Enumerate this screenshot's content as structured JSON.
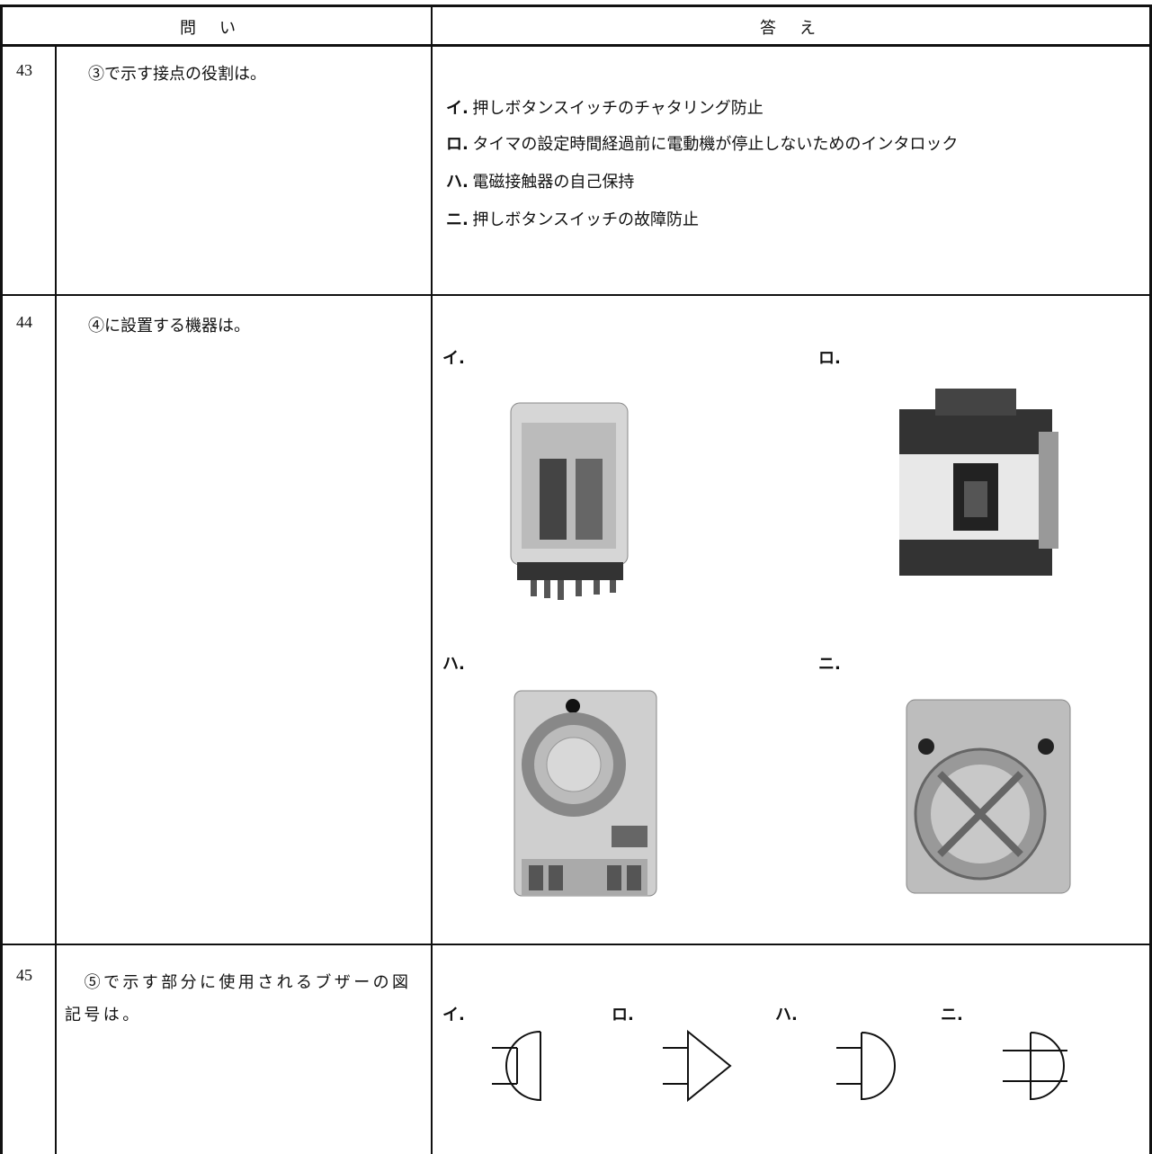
{
  "header": {
    "question": "問　い",
    "answer": "答　え"
  },
  "questions": [
    {
      "number": "43",
      "text": "③で示す接点の役割は。",
      "options": [
        {
          "label": "イ.",
          "text": "押しボタンスイッチのチャタリング防止"
        },
        {
          "label": "ロ.",
          "text": "タイマの設定時間経過前に電動機が停止しないためのインタロック"
        },
        {
          "label": "ハ.",
          "text": "電磁接触器の自己保持"
        },
        {
          "label": "ニ.",
          "text": "押しボタンスイッチの故障防止"
        }
      ]
    },
    {
      "number": "44",
      "text": "④に設置する機器は。",
      "options": [
        {
          "label": "イ."
        },
        {
          "label": "ロ."
        },
        {
          "label": "ハ."
        },
        {
          "label": "ニ."
        }
      ]
    },
    {
      "number": "45",
      "text": "⑤で示す部分に使用されるブザーの図記号は。",
      "options": [
        {
          "label": "イ."
        },
        {
          "label": "ロ."
        },
        {
          "label": "ハ."
        },
        {
          "label": "ニ."
        }
      ]
    }
  ]
}
